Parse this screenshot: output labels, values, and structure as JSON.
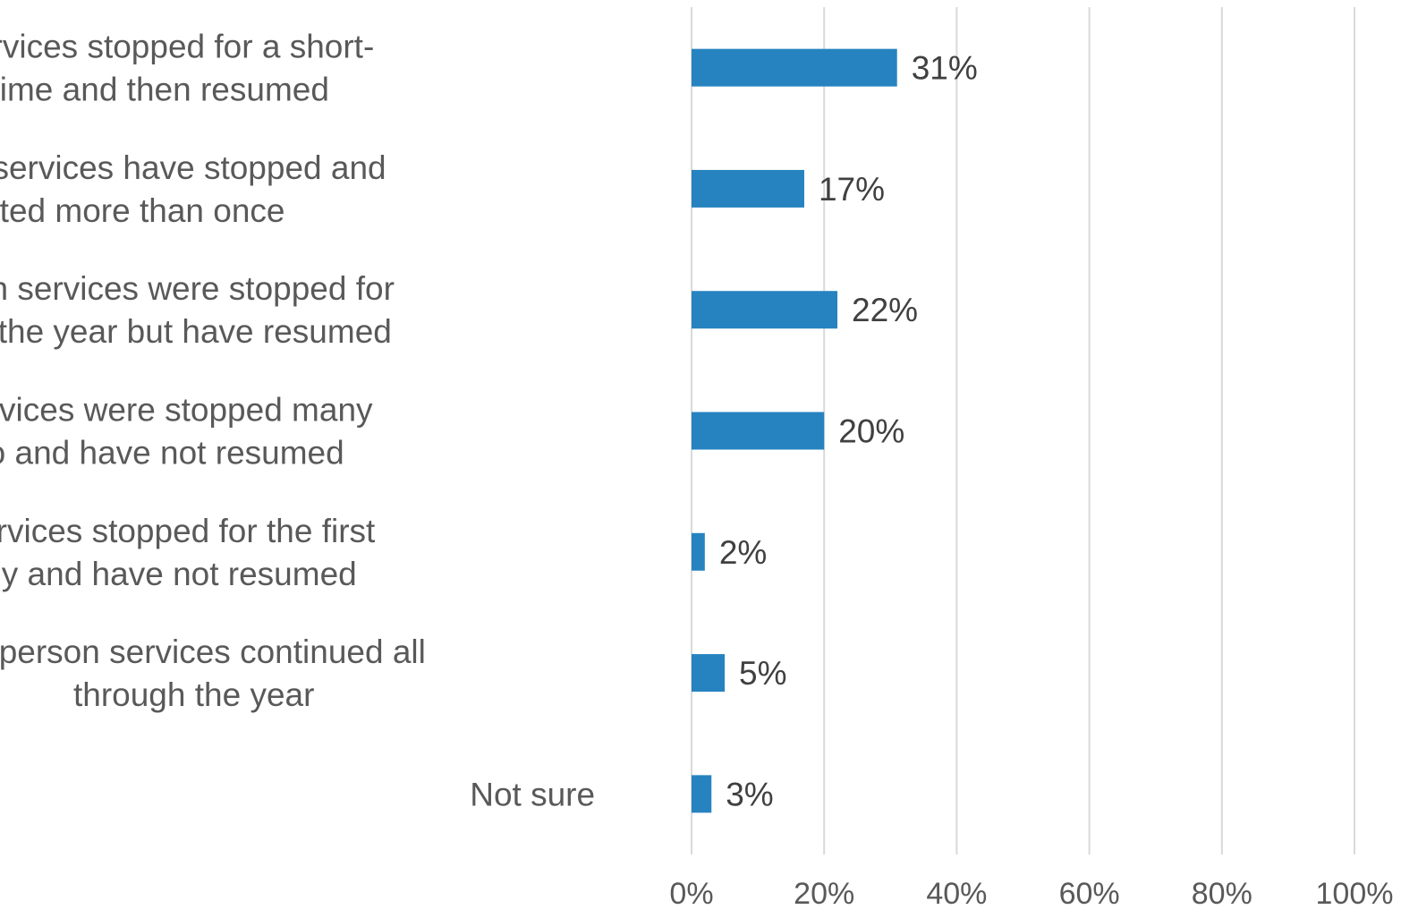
{
  "chart_data": {
    "type": "bar",
    "orientation": "horizontal",
    "categories": [
      [
        "In-person services stopped for a short-",
        "period of time and then resumed"
      ],
      [
        "In-person services have stopped and",
        "started more than once"
      ],
      [
        "In-person services were stopped for",
        "much of the year but have resumed"
      ],
      [
        "In-person services were stopped many",
        "months ago and have not resumed"
      ],
      [
        "In-person services stopped for the first",
        "time recently and have not resumed"
      ],
      [
        "In person services continued all",
        "through the year"
      ],
      [
        "Not sure"
      ]
    ],
    "values": [
      31,
      17,
      22,
      20,
      2,
      5,
      3
    ],
    "data_labels": [
      "31%",
      "17%",
      "22%",
      "20%",
      "2%",
      "5%",
      "3%"
    ],
    "x_ticks": [
      0,
      20,
      40,
      60,
      80,
      100
    ],
    "x_tick_labels": [
      "0%",
      "20%",
      "40%",
      "60%",
      "80%",
      "100%"
    ],
    "xlim": [
      0,
      100
    ],
    "grid": "vertical",
    "legend": "none",
    "bar_color": "#2683c0"
  }
}
